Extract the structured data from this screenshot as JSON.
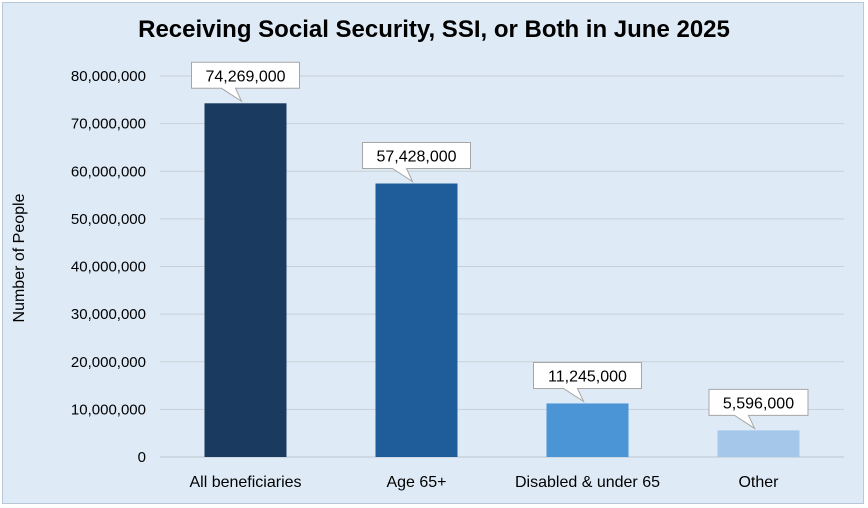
{
  "chart_data": {
    "type": "bar",
    "title": "Receiving Social Security, SSI, or Both in June 2025",
    "xlabel": "",
    "ylabel": "Number of People",
    "categories": [
      "All beneficiaries",
      "Age 65+",
      "Disabled & under 65",
      "Other"
    ],
    "values": [
      74269000,
      57428000,
      11245000,
      5596000
    ],
    "data_labels": [
      "74,269,000",
      "57,428,000",
      "11,245,000",
      "5,596,000"
    ],
    "ylim": [
      0,
      80000000
    ],
    "yticks": [
      0,
      10000000,
      20000000,
      30000000,
      40000000,
      50000000,
      60000000,
      70000000,
      80000000
    ],
    "ytick_labels": [
      "0",
      "10,000,000",
      "20,000,000",
      "30,000,000",
      "40,000,000",
      "50,000,000",
      "60,000,000",
      "70,000,000",
      "80,000,000"
    ],
    "grid": true,
    "legend": "none",
    "colors": [
      "#1a3a5f",
      "#1f5d9a",
      "#4b94d6",
      "#a5c8ea"
    ],
    "background": "#deebf7",
    "gridline_color": "#c9cfd6"
  }
}
